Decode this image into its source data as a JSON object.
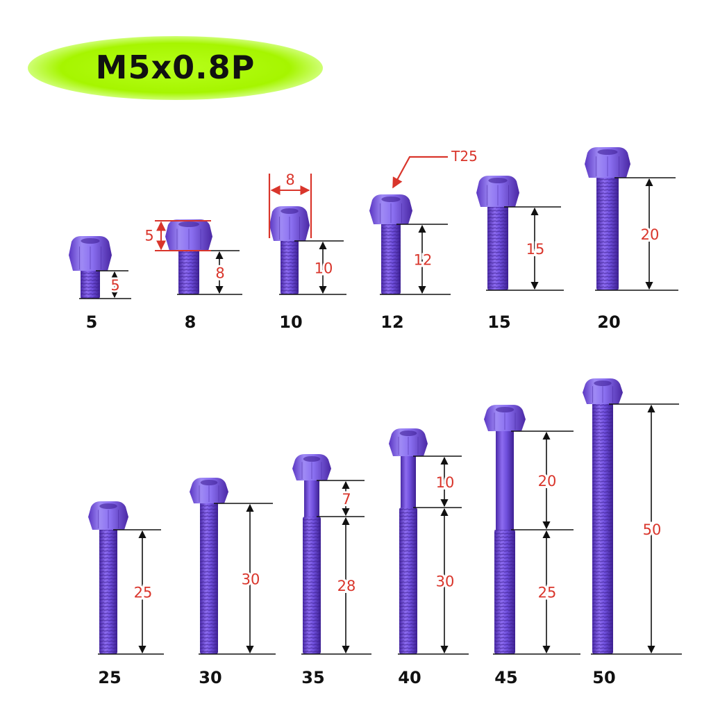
{
  "title": "M5x0.8P",
  "colors": {
    "bolt": "#7a5bd6",
    "bolt_dark": "#5b37b8",
    "bolt_light": "#a99aff",
    "dim_red": "#d9352b",
    "dim_line": "#111111",
    "title_glow": "#a6f500"
  },
  "bolts": [
    {
      "length": "5",
      "dims": [
        {
          "value": "5"
        }
      ]
    },
    {
      "length": "8",
      "dims": [
        {
          "value": "8"
        }
      ],
      "head_height": "5"
    },
    {
      "length": "10",
      "dims": [
        {
          "value": "10"
        }
      ],
      "head_diameter": "8"
    },
    {
      "length": "12",
      "dims": [
        {
          "value": "12"
        }
      ],
      "drive": "T25"
    },
    {
      "length": "15",
      "dims": [
        {
          "value": "15"
        }
      ]
    },
    {
      "length": "20",
      "dims": [
        {
          "value": "20"
        }
      ]
    },
    {
      "length": "25",
      "dims": [
        {
          "value": "25"
        }
      ]
    },
    {
      "length": "30",
      "dims": [
        {
          "value": "30"
        }
      ]
    },
    {
      "length": "35",
      "dims": [
        {
          "value": "7"
        },
        {
          "value": "28"
        }
      ]
    },
    {
      "length": "40",
      "dims": [
        {
          "value": "10"
        },
        {
          "value": "30"
        }
      ]
    },
    {
      "length": "45",
      "dims": [
        {
          "value": "20"
        },
        {
          "value": "25"
        }
      ]
    },
    {
      "length": "50",
      "dims": [
        {
          "value": "50"
        }
      ]
    }
  ]
}
